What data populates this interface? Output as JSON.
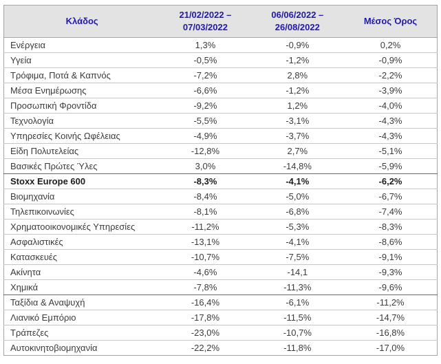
{
  "table": {
    "headers": {
      "sector": "Κλάδος",
      "period1": "21/02/2022 –\n07/03/2022",
      "period2": "06/06/2022 –\n26/08/2022",
      "average": "Μέσος Όρος"
    },
    "rows": [
      {
        "sector": "Ενέργεια",
        "period1": "1,3%",
        "period2": "-0,9%",
        "average": "0,2%",
        "emphasis": false,
        "section_start": false
      },
      {
        "sector": "Υγεία",
        "period1": "-0,5%",
        "period2": "-1,2%",
        "average": "-0,9%",
        "emphasis": false,
        "section_start": false
      },
      {
        "sector": "Τρόφιμα, Ποτά & Καπνός",
        "period1": "-7,2%",
        "period2": "2,8%",
        "average": "-2,2%",
        "emphasis": false,
        "section_start": false
      },
      {
        "sector": "Μέσα Ενημέρωσης",
        "period1": "-6,6%",
        "period2": "-1,2%",
        "average": "-3,9%",
        "emphasis": false,
        "section_start": false
      },
      {
        "sector": "Προσωπική Φροντίδα",
        "period1": "-9,2%",
        "period2": "1,2%",
        "average": "-4,0%",
        "emphasis": false,
        "section_start": false
      },
      {
        "sector": "Τεχνολογία",
        "period1": "-5,5%",
        "period2": "-3,1%",
        "average": "-4,3%",
        "emphasis": false,
        "section_start": false
      },
      {
        "sector": "Υπηρεσίες Κοινής Ωφέλειας",
        "period1": "-4,9%",
        "period2": "-3,7%",
        "average": "-4,3%",
        "emphasis": false,
        "section_start": false
      },
      {
        "sector": "Είδη Πολυτελείας",
        "period1": "-12,8%",
        "period2": "2,7%",
        "average": "-5,1%",
        "emphasis": false,
        "section_start": false
      },
      {
        "sector": "Βασικές Πρώτες Ύλες",
        "period1": "3,0%",
        "period2": "-14,8%",
        "average": "-5,9%",
        "emphasis": false,
        "section_start": false
      },
      {
        "sector": "Stoxx Europe 600",
        "period1": "-8,3%",
        "period2": "-4,1%",
        "average": "-6,2%",
        "emphasis": true,
        "section_start": true
      },
      {
        "sector": "Βιομηχανία",
        "period1": "-8,4%",
        "period2": "-5,0%",
        "average": "-6,7%",
        "emphasis": false,
        "section_start": false
      },
      {
        "sector": "Τηλεπικοινωνίες",
        "period1": "-8,1%",
        "period2": "-6,8%",
        "average": "-7,4%",
        "emphasis": false,
        "section_start": false
      },
      {
        "sector": "Χρηματοοικονομικές Υπηρεσίες",
        "period1": "-11,2%",
        "period2": "-5,3%",
        "average": "-8,3%",
        "emphasis": false,
        "section_start": false
      },
      {
        "sector": "Ασφαλιστικές",
        "period1": "-13,1%",
        "period2": "-4,1%",
        "average": "-8,6%",
        "emphasis": false,
        "section_start": false
      },
      {
        "sector": "Κατασκευές",
        "period1": "-10,7%",
        "period2": "-7,5%",
        "average": "-9,1%",
        "emphasis": false,
        "section_start": false
      },
      {
        "sector": "Ακίνητα",
        "period1": "-4,6%",
        "period2": "-14,1",
        "average": "-9,3%",
        "emphasis": false,
        "section_start": false
      },
      {
        "sector": "Χημικά",
        "period1": "-7,8%",
        "period2": "-11,3%",
        "average": "-9,6%",
        "emphasis": false,
        "section_start": false
      },
      {
        "sector": "Ταξίδια & Αναψυχή",
        "period1": "-16,4%",
        "period2": "-6,1%",
        "average": "-11,2%",
        "emphasis": false,
        "section_start": true
      },
      {
        "sector": "Λιανικό Εμπόριο",
        "period1": "-17,8%",
        "period2": "-11,5%",
        "average": "-14,7%",
        "emphasis": false,
        "section_start": false
      },
      {
        "sector": "Τράπεζες",
        "period1": "-23,0%",
        "period2": "-10,7%",
        "average": "-16,8%",
        "emphasis": false,
        "section_start": false
      },
      {
        "sector": "Αυτοκινητοβιομηχανία",
        "period1": "-22,2%",
        "period2": "-11,8%",
        "average": "-17,0%",
        "emphasis": false,
        "section_start": false
      }
    ]
  },
  "colors": {
    "header_bg": "#e3e3e3",
    "header_text": "#2119a8",
    "body_text": "#3b3b3b",
    "row_border": "#c6c6c6",
    "section_border": "#666666",
    "outer_border": "#a3a3a3"
  }
}
